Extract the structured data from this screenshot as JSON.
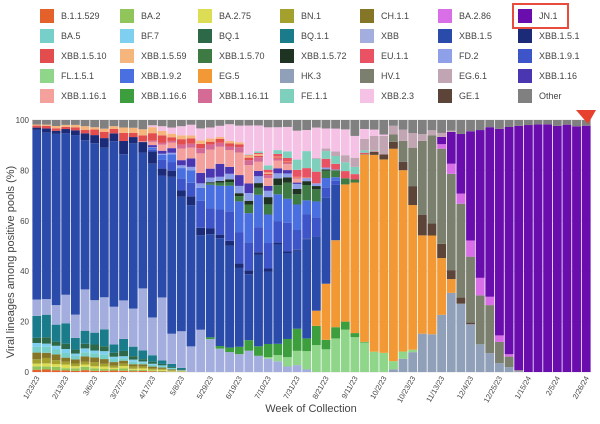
{
  "chart_data": {
    "type": "bar",
    "stacked": true,
    "title": "",
    "xlabel": "Week of Collection",
    "ylabel": "Viral lineages among positive pools (%)",
    "ylim": [
      0,
      100
    ],
    "yticks": [
      0,
      20,
      40,
      60,
      80,
      100
    ],
    "grid": true,
    "legend_placement": "top",
    "tick_labels": [
      "1/23/23",
      "2/13/23",
      "3/6/23",
      "3/27/23",
      "4/17/23",
      "5/8/23",
      "5/29/23",
      "6/19/23",
      "7/10/23",
      "7/31/23",
      "8/21/23",
      "9/11/23",
      "10/2/23",
      "10/23/23",
      "11/13/23",
      "12/4/23",
      "12/25/23",
      "1/15/24",
      "2/5/24",
      "2/26/24"
    ],
    "series": [
      {
        "name": "B.1.1.529",
        "color": "#e4612c"
      },
      {
        "name": "BA.2",
        "color": "#8fc55a"
      },
      {
        "name": "BA.2.75",
        "color": "#dddd55"
      },
      {
        "name": "BN.1",
        "color": "#a3a02e"
      },
      {
        "name": "CH.1.1",
        "color": "#857526"
      },
      {
        "name": "BA.2.86",
        "color": "#d96fe6"
      },
      {
        "name": "JN.1",
        "color": "#6a0dad"
      },
      {
        "name": "BA.5",
        "color": "#77cfc9"
      },
      {
        "name": "BF.7",
        "color": "#7ecff0"
      },
      {
        "name": "BQ.1",
        "color": "#2d6848"
      },
      {
        "name": "BQ.1.1",
        "color": "#1a7b8b"
      },
      {
        "name": "XBB",
        "color": "#a4aede"
      },
      {
        "name": "XBB.1.5",
        "color": "#2b4bab"
      },
      {
        "name": "XBB.1.5.1",
        "color": "#1c2b78"
      },
      {
        "name": "XBB.1.5.10",
        "color": "#e34d4d"
      },
      {
        "name": "XBB.1.5.59",
        "color": "#f5b57c"
      },
      {
        "name": "XBB.1.5.70",
        "color": "#3e7a44"
      },
      {
        "name": "XBB.1.5.72",
        "color": "#1f3322"
      },
      {
        "name": "EU.1.1",
        "color": "#e85262"
      },
      {
        "name": "FD.2",
        "color": "#8ea0e8"
      },
      {
        "name": "XBB.1.9.1",
        "color": "#3d55c8"
      },
      {
        "name": "FL.1.5.1",
        "color": "#8fd68a"
      },
      {
        "name": "XBB.1.9.2",
        "color": "#4a6fe0"
      },
      {
        "name": "EG.5",
        "color": "#f29935"
      },
      {
        "name": "HK.3",
        "color": "#8fa0b8"
      },
      {
        "name": "HV.1",
        "color": "#7b7f6e"
      },
      {
        "name": "EG.6.1",
        "color": "#c2a5b3"
      },
      {
        "name": "XBB.1.16",
        "color": "#4a36b0"
      },
      {
        "name": "XBB.1.16.1",
        "color": "#f4a19e"
      },
      {
        "name": "XBB.1.16.6",
        "color": "#3c9e3c"
      },
      {
        "name": "XBB.1.16.11",
        "color": "#d46a96"
      },
      {
        "name": "FE.1.1",
        "color": "#7ed0bd"
      },
      {
        "name": "XBB.2.3",
        "color": "#f5c2e6"
      },
      {
        "name": "GE.1",
        "color": "#5c4438"
      },
      {
        "name": "Other",
        "color": "#808080"
      }
    ],
    "highlight": "JN.1"
  }
}
